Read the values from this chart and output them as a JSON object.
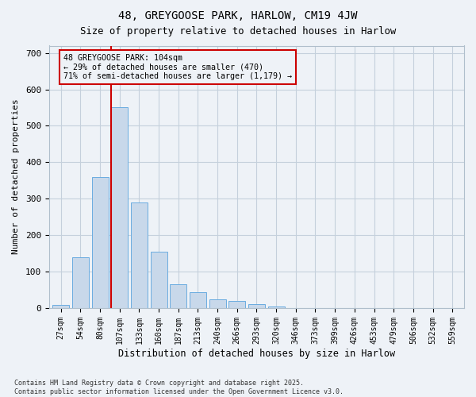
{
  "title1": "48, GREYGOOSE PARK, HARLOW, CM19 4JW",
  "title2": "Size of property relative to detached houses in Harlow",
  "xlabel": "Distribution of detached houses by size in Harlow",
  "ylabel": "Number of detached properties",
  "categories": [
    "27sqm",
    "54sqm",
    "80sqm",
    "107sqm",
    "133sqm",
    "160sqm",
    "187sqm",
    "213sqm",
    "240sqm",
    "266sqm",
    "293sqm",
    "320sqm",
    "346sqm",
    "373sqm",
    "399sqm",
    "426sqm",
    "453sqm",
    "479sqm",
    "506sqm",
    "532sqm",
    "559sqm"
  ],
  "values": [
    8,
    138,
    360,
    550,
    290,
    155,
    65,
    42,
    22,
    18,
    10,
    3,
    0,
    0,
    0,
    0,
    0,
    0,
    0,
    0,
    0
  ],
  "bar_color": "#c8d8ea",
  "bar_edge_color": "#6aace0",
  "vline_color": "#cc0000",
  "vline_pos": 2.575,
  "annotation_text": "48 GREYGOOSE PARK: 104sqm\n← 29% of detached houses are smaller (470)\n71% of semi-detached houses are larger (1,179) →",
  "box_edge_color": "#cc0000",
  "bg_color": "#eef2f7",
  "grid_color": "#c5d0dc",
  "footnote": "Contains HM Land Registry data © Crown copyright and database right 2025.\nContains public sector information licensed under the Open Government Licence v3.0.",
  "ylim": [
    0,
    720
  ],
  "yticks": [
    0,
    100,
    200,
    300,
    400,
    500,
    600,
    700
  ]
}
